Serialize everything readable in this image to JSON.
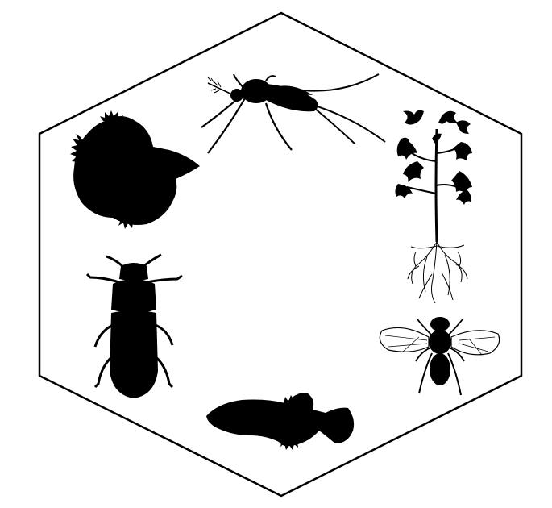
{
  "figure": {
    "shape": "hexagon",
    "background": "#ffffff",
    "stroke_color": "#000000",
    "fill_color": "#000000",
    "organisms": [
      {
        "name": "mosquito",
        "position": "top"
      },
      {
        "name": "tomato-plant",
        "position": "upper-right"
      },
      {
        "name": "fruit-fly",
        "position": "lower-right"
      },
      {
        "name": "killifish",
        "position": "bottom"
      },
      {
        "name": "beetle",
        "position": "lower-left"
      },
      {
        "name": "betta-fish",
        "position": "upper-left"
      }
    ]
  }
}
